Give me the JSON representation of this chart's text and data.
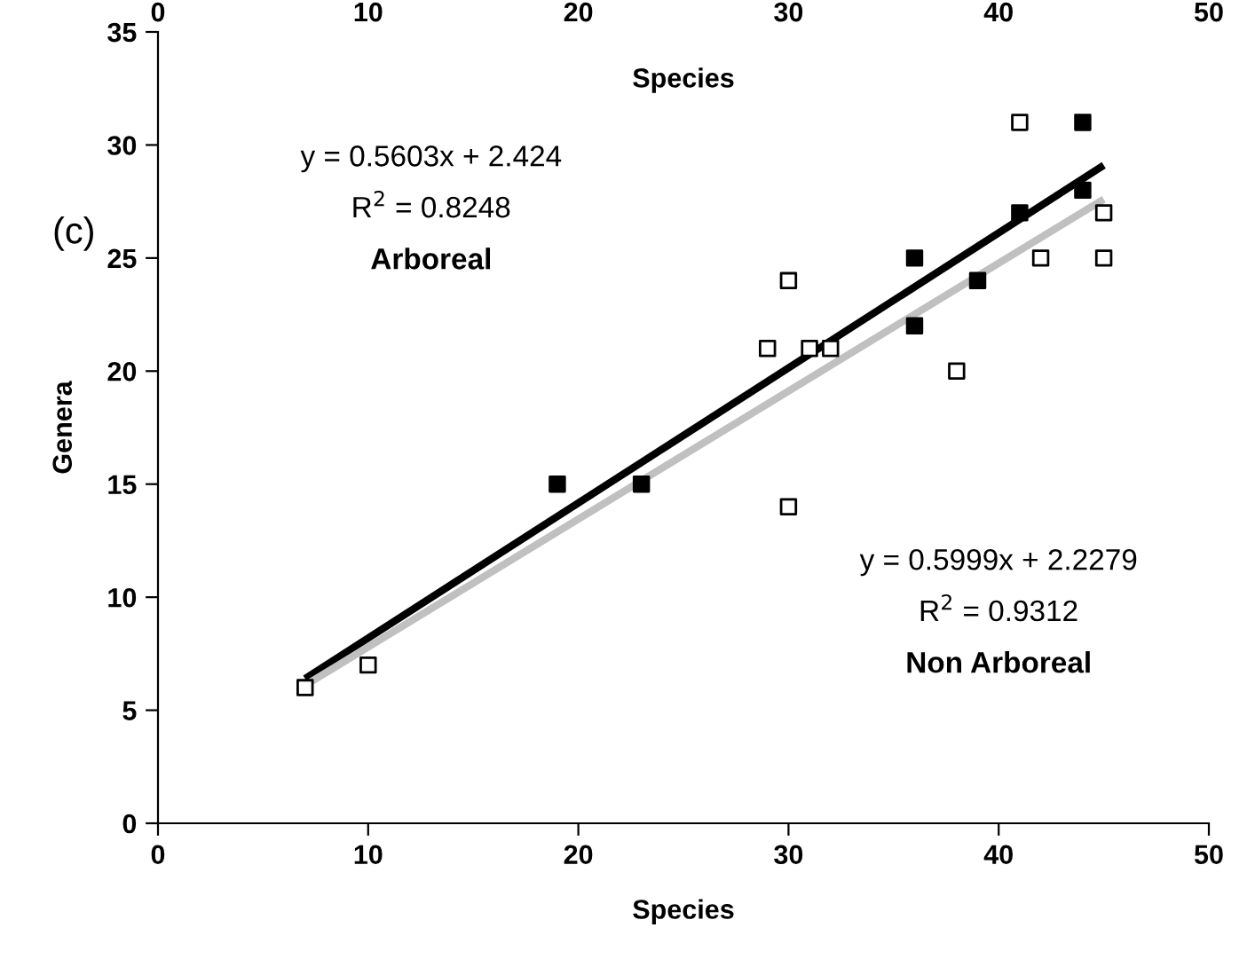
{
  "chart_data": {
    "type": "scatter",
    "xlabel": "Species",
    "ylabel": "Genera",
    "x2label": "Species",
    "xlim": [
      0,
      50
    ],
    "xticks": [
      0,
      10,
      20,
      30,
      40,
      50
    ],
    "x2lim": [
      0,
      50
    ],
    "x2ticks": [
      0,
      10,
      20,
      30,
      40,
      50
    ],
    "ylim": [
      0,
      35
    ],
    "yticks": [
      0,
      5,
      10,
      15,
      20,
      25,
      30,
      35
    ],
    "grid": false,
    "legend": false,
    "series": [
      {
        "marker": "square",
        "color": "#000000",
        "x": [
          19,
          23,
          36,
          36,
          39,
          41,
          44,
          44
        ],
        "values": [
          15,
          15,
          25,
          22,
          24,
          27,
          31,
          28
        ]
      },
      {
        "marker": "square",
        "color": "#ffffff",
        "x": [
          7,
          10,
          29,
          30,
          30,
          31,
          32,
          38,
          41,
          42,
          45,
          45
        ],
        "values": [
          6,
          7,
          21,
          24,
          14,
          21,
          21,
          20,
          31,
          25,
          27,
          25
        ]
      },
      {
        "type": "line",
        "marker": "none",
        "color": "#000000",
        "x": [
          7,
          45
        ],
        "values": [
          6.4,
          29.1
        ]
      },
      {
        "type": "line",
        "marker": "none",
        "color": "#c0c0c0",
        "x": [
          7,
          45
        ],
        "values": [
          6.1,
          27.6
        ]
      }
    ],
    "annotations": [
      "(c)",
      "y = 0.5603x + 2.424",
      "R$^{2}$ = 0.8248",
      "Arboreal",
      "y = 0.5999x + 2.2279",
      "R$^{2}$ = 0.9312",
      "Non Arboreal"
    ]
  }
}
